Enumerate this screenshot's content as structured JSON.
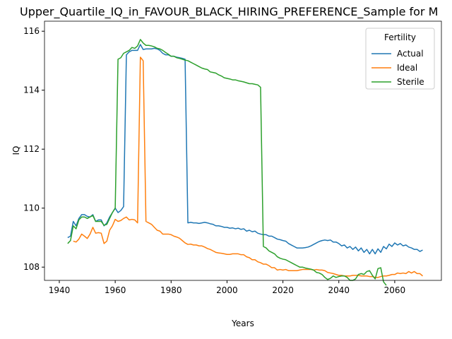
{
  "chart_data": {
    "type": "line",
    "title": "Upper_Quartile_IQ_in_FAVOUR_BLACK_HIRING_PREFERENCE_Sample for M",
    "x_label": "Years",
    "y_label": "IQ",
    "legend_title": "Fertility",
    "legend": "upper right",
    "grid": false,
    "xlim": [
      1934.7,
      2076.7
    ],
    "xticks": [
      1940,
      1960,
      1980,
      2000,
      2020,
      2040,
      2060
    ],
    "ylim": [
      107.55,
      116.34
    ],
    "yticks": [
      108,
      110,
      112,
      114,
      116
    ],
    "x": [
      1943,
      1944,
      1945,
      1946,
      1947,
      1948,
      1949,
      1950,
      1951,
      1952,
      1953,
      1954,
      1955,
      1956,
      1957,
      1958,
      1959,
      1960,
      1961,
      1962,
      1963,
      1964,
      1965,
      1966,
      1967,
      1968,
      1969,
      1970,
      1971,
      1972,
      1973,
      1974,
      1975,
      1976,
      1977,
      1978,
      1979,
      1980,
      1981,
      1982,
      1983,
      1984,
      1985,
      1986,
      1987,
      1988,
      1989,
      1990,
      1991,
      1992,
      1993,
      1994,
      1995,
      1996,
      1997,
      1998,
      1999,
      2000,
      2001,
      2002,
      2003,
      2004,
      2005,
      2006,
      2007,
      2008,
      2009,
      2010,
      2011,
      2012,
      2013,
      2014,
      2015,
      2016,
      2017,
      2018,
      2019,
      2020,
      2021,
      2022,
      2023,
      2024,
      2025,
      2026,
      2027,
      2028,
      2029,
      2030,
      2031,
      2032,
      2033,
      2034,
      2035,
      2036,
      2037,
      2038,
      2039,
      2040,
      2041,
      2042,
      2043,
      2044,
      2045,
      2046,
      2047,
      2048,
      2049,
      2050,
      2051,
      2052,
      2053,
      2054,
      2055,
      2056,
      2057,
      2058,
      2059,
      2060,
      2061,
      2062,
      2063,
      2064,
      2065,
      2066,
      2067,
      2068,
      2069,
      2070
    ],
    "series": [
      {
        "name": "Actual",
        "color": "#1f77b4",
        "values": [
          109.0,
          109.05,
          109.55,
          109.4,
          109.65,
          109.78,
          109.78,
          109.72,
          109.7,
          109.78,
          109.55,
          109.6,
          109.6,
          109.4,
          109.5,
          109.7,
          109.85,
          110.0,
          109.85,
          109.92,
          110.05,
          115.2,
          115.3,
          115.35,
          115.35,
          115.35,
          115.55,
          115.38,
          115.4,
          115.4,
          115.4,
          115.42,
          115.4,
          115.35,
          115.25,
          115.2,
          115.2,
          115.15,
          115.15,
          115.12,
          115.1,
          115.08,
          115.05,
          109.5,
          109.52,
          109.5,
          109.5,
          109.48,
          109.5,
          109.52,
          109.5,
          109.47,
          109.45,
          109.4,
          109.4,
          109.38,
          109.35,
          109.35,
          109.32,
          109.33,
          109.3,
          109.32,
          109.28,
          109.3,
          109.22,
          109.25,
          109.2,
          109.22,
          109.15,
          109.12,
          109.1,
          109.1,
          109.05,
          109.05,
          109.0,
          108.95,
          108.93,
          108.9,
          108.88,
          108.8,
          108.75,
          108.7,
          108.65,
          108.65,
          108.65,
          108.66,
          108.68,
          108.72,
          108.77,
          108.82,
          108.87,
          108.9,
          108.92,
          108.9,
          108.92,
          108.85,
          108.85,
          108.8,
          108.72,
          108.75,
          108.65,
          108.7,
          108.6,
          108.68,
          108.55,
          108.65,
          108.5,
          108.6,
          108.45,
          108.6,
          108.45,
          108.62,
          108.5,
          108.7,
          108.62,
          108.78,
          108.7,
          108.82,
          108.75,
          108.8,
          108.72,
          108.75,
          108.68,
          108.65,
          108.6,
          108.6,
          108.53,
          108.58
        ]
      },
      {
        "name": "Ideal",
        "color": "#ff7f0e",
        "values": [
          null,
          null,
          108.88,
          108.85,
          108.95,
          109.12,
          109.05,
          108.97,
          109.12,
          109.35,
          109.15,
          109.17,
          109.15,
          108.8,
          108.88,
          109.25,
          109.4,
          109.62,
          109.55,
          109.58,
          109.65,
          109.7,
          109.6,
          109.62,
          109.6,
          109.5,
          115.12,
          115.0,
          109.55,
          109.5,
          109.45,
          109.35,
          109.25,
          109.22,
          109.12,
          109.12,
          109.12,
          109.1,
          109.05,
          109.02,
          108.98,
          108.9,
          108.82,
          108.77,
          108.78,
          108.75,
          108.75,
          108.72,
          108.72,
          108.68,
          108.63,
          108.6,
          108.55,
          108.5,
          108.48,
          108.47,
          108.45,
          108.43,
          108.43,
          108.45,
          108.45,
          108.45,
          108.42,
          108.42,
          108.35,
          108.32,
          108.25,
          108.25,
          108.18,
          108.15,
          108.1,
          108.1,
          108.05,
          107.98,
          107.98,
          107.9,
          107.92,
          107.9,
          107.92,
          107.88,
          107.88,
          107.88,
          107.88,
          107.9,
          107.92,
          107.92,
          107.92,
          107.92,
          107.9,
          107.92,
          107.9,
          107.9,
          107.88,
          107.82,
          107.8,
          107.78,
          107.75,
          107.72,
          107.72,
          107.7,
          107.7,
          107.7,
          107.72,
          107.72,
          107.72,
          107.7,
          107.7,
          107.7,
          107.68,
          107.68,
          107.65,
          107.65,
          107.68,
          107.7,
          107.7,
          107.72,
          107.75,
          107.75,
          107.8,
          107.78,
          107.8,
          107.78,
          107.85,
          107.8,
          107.85,
          107.78,
          107.78,
          107.7
        ]
      },
      {
        "name": "Sterile",
        "color": "#2ca02c",
        "values": [
          108.8,
          108.9,
          109.4,
          109.3,
          109.6,
          109.7,
          109.7,
          109.65,
          109.7,
          109.75,
          109.55,
          109.55,
          109.55,
          109.42,
          109.45,
          109.65,
          109.85,
          110.0,
          115.05,
          115.1,
          115.25,
          115.3,
          115.35,
          115.45,
          115.42,
          115.5,
          115.72,
          115.6,
          115.52,
          115.52,
          115.5,
          115.47,
          115.42,
          115.4,
          115.35,
          115.28,
          115.22,
          115.15,
          115.15,
          115.1,
          115.08,
          115.05,
          115.02,
          115.0,
          114.95,
          114.9,
          114.85,
          114.8,
          114.75,
          114.72,
          114.7,
          114.62,
          114.6,
          114.58,
          114.52,
          114.48,
          114.42,
          114.4,
          114.38,
          114.35,
          114.35,
          114.32,
          114.3,
          114.28,
          114.25,
          114.22,
          114.22,
          114.2,
          114.18,
          114.1,
          108.7,
          108.65,
          108.55,
          108.5,
          108.45,
          108.35,
          108.3,
          108.27,
          108.25,
          108.2,
          108.15,
          108.1,
          108.05,
          108.0,
          108.0,
          107.97,
          107.95,
          107.93,
          107.9,
          107.82,
          107.8,
          107.75,
          107.65,
          107.58,
          107.62,
          107.7,
          107.65,
          107.68,
          107.7,
          107.7,
          107.65,
          107.55,
          107.55,
          107.6,
          107.75,
          107.78,
          107.75,
          107.85,
          107.88,
          107.72,
          107.6,
          107.95,
          107.98,
          107.5,
          107.38,
          null,
          null,
          null,
          null,
          null,
          null,
          null,
          null,
          null,
          null,
          null,
          null,
          null
        ]
      }
    ]
  }
}
